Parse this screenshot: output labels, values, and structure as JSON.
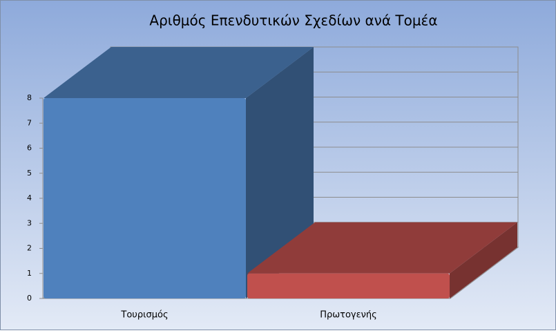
{
  "chart_data": {
    "type": "bar3d",
    "title": "Αριθμός Επενδυτικών Σχεδίων ανά Τομέα",
    "categories": [
      "Τουρισμός",
      "Πρωτογενής"
    ],
    "series": [
      {
        "name": "Τουρισμός",
        "color": "#4f81bd",
        "values": [
          8,
          null
        ]
      },
      {
        "name": "Πρωτογενής",
        "color": "#c0504d",
        "values": [
          null,
          1
        ]
      }
    ],
    "ylim": [
      0,
      8
    ],
    "yticks": [
      0,
      1,
      2,
      3,
      4,
      5,
      6,
      7,
      8
    ],
    "grid": true
  }
}
